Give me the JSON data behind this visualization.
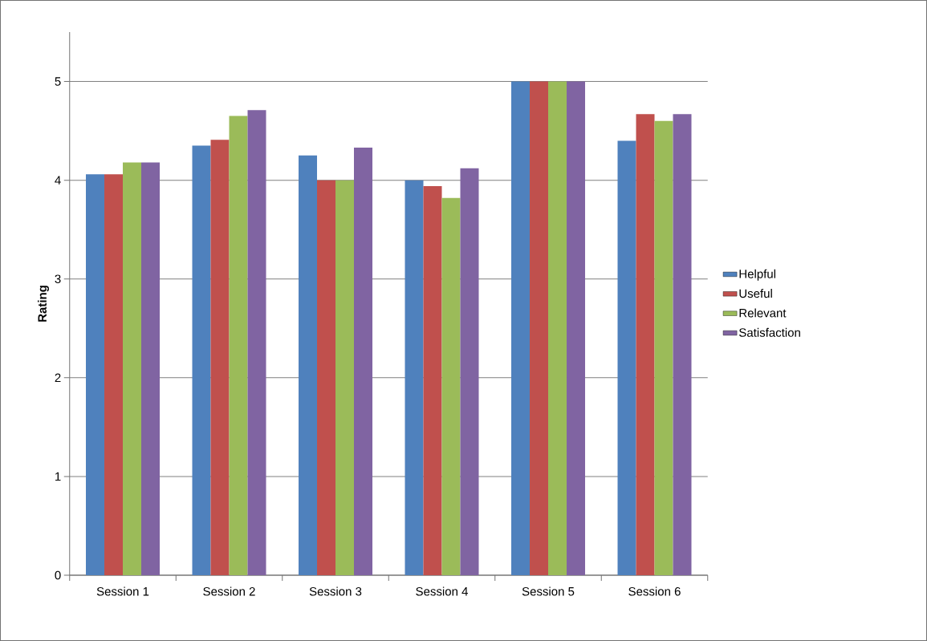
{
  "chart_data": {
    "type": "bar",
    "ylabel": "Rating",
    "categories": [
      "Session 1",
      "Session 2",
      "Session 3",
      "Session 4",
      "Session 5",
      "Session 6"
    ],
    "series": [
      {
        "name": "Helpful",
        "color": "#4f81bd",
        "values": [
          4.06,
          4.35,
          4.25,
          4.0,
          5.0,
          4.4
        ]
      },
      {
        "name": "Useful",
        "color": "#c0504d",
        "values": [
          4.06,
          4.41,
          4.0,
          3.94,
          5.0,
          4.67
        ]
      },
      {
        "name": "Relevant",
        "color": "#9bbb59",
        "values": [
          4.18,
          4.65,
          4.0,
          3.82,
          5.0,
          4.6
        ]
      },
      {
        "name": "Satisfaction",
        "color": "#8064a2",
        "values": [
          4.18,
          4.71,
          4.33,
          4.12,
          5.0,
          4.67
        ]
      }
    ],
    "ylim": [
      0,
      5.5
    ],
    "yticks": [
      0,
      1,
      2,
      3,
      4,
      5
    ],
    "grid": "y",
    "legend": "right"
  }
}
